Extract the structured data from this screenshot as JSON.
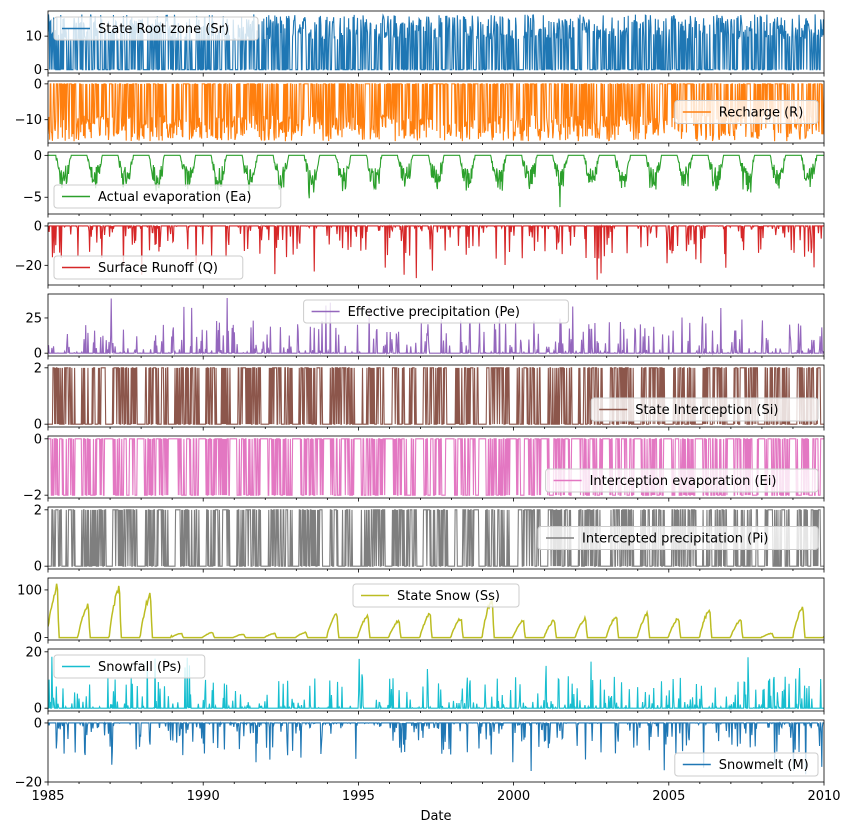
{
  "chart_data": {
    "type": "line",
    "xlabel": "Date",
    "x_range": [
      "1985",
      "2010"
    ],
    "x_ticks": [
      "1985",
      "1990",
      "1995",
      "2000",
      "2005",
      "2010"
    ],
    "grid": false,
    "panels": [
      {
        "name": "State Root zone (Sr)",
        "color": "#1f77b4",
        "ylim": [
          -1,
          17.5
        ],
        "yticks": [
          0,
          10
        ],
        "legend": "upper-left",
        "kind": "dense_pos",
        "peak": 16.5
      },
      {
        "name": "Recharge (R)",
        "color": "#ff7f0e",
        "ylim": [
          -16.5,
          0.8
        ],
        "yticks": [
          -10,
          0
        ],
        "legend": "center-right",
        "kind": "dense_neg",
        "peak": -16
      },
      {
        "name": "Actual evaporation (Ea)",
        "color": "#2ca02c",
        "ylim": [
          -7,
          0.4
        ],
        "yticks": [
          -5,
          0
        ],
        "legend": "lower-left",
        "kind": "seasonal_neg",
        "peak": -6.5
      },
      {
        "name": "Surface Runoff (Q)",
        "color": "#d62728",
        "ylim": [
          -30,
          1.5
        ],
        "yticks": [
          -20,
          0
        ],
        "legend": "lower-left",
        "kind": "spiky_neg",
        "peak": -29
      },
      {
        "name": "Effective precipitation (Pe)",
        "color": "#9467bd",
        "ylim": [
          -2,
          42
        ],
        "yticks": [
          0,
          25
        ],
        "legend": "upper-center",
        "kind": "spiky_pos",
        "peak": 40
      },
      {
        "name": "State Interception (Si)",
        "color": "#8c564b",
        "ylim": [
          -0.1,
          2.1
        ],
        "yticks": [
          0,
          2
        ],
        "legend": "lower-right",
        "kind": "block_pos",
        "peak": 2
      },
      {
        "name": "Interception evaporation (Ei)",
        "color": "#e377c2",
        "ylim": [
          -2.1,
          0.1
        ],
        "yticks": [
          -2,
          0
        ],
        "legend": "lower-right",
        "kind": "block_neg",
        "peak": -2
      },
      {
        "name": "Intercepted precipitation (Pi)",
        "color": "#7f7f7f",
        "ylim": [
          -0.1,
          2.1
        ],
        "yticks": [
          0,
          2
        ],
        "legend": "center-right",
        "kind": "block_pos",
        "peak": 2
      },
      {
        "name": "State Snow (Ss)",
        "color": "#bcbd22",
        "ylim": [
          -5,
          125
        ],
        "yticks": [
          0,
          100
        ],
        "legend": "upper-center",
        "kind": "snow_state",
        "peak": 120
      },
      {
        "name": "Snowfall (Ps)",
        "color": "#17becf",
        "ylim": [
          -1,
          21
        ],
        "yticks": [
          0,
          20
        ],
        "legend": "upper-left",
        "kind": "spiky_pos",
        "peak": 19
      },
      {
        "name": "Snowmelt (M)",
        "color": "#1f77b4",
        "ylim": [
          -20,
          1
        ],
        "yticks": [
          -20,
          0
        ],
        "legend": "lower-right",
        "kind": "spiky_neg",
        "peak": -19
      }
    ]
  }
}
